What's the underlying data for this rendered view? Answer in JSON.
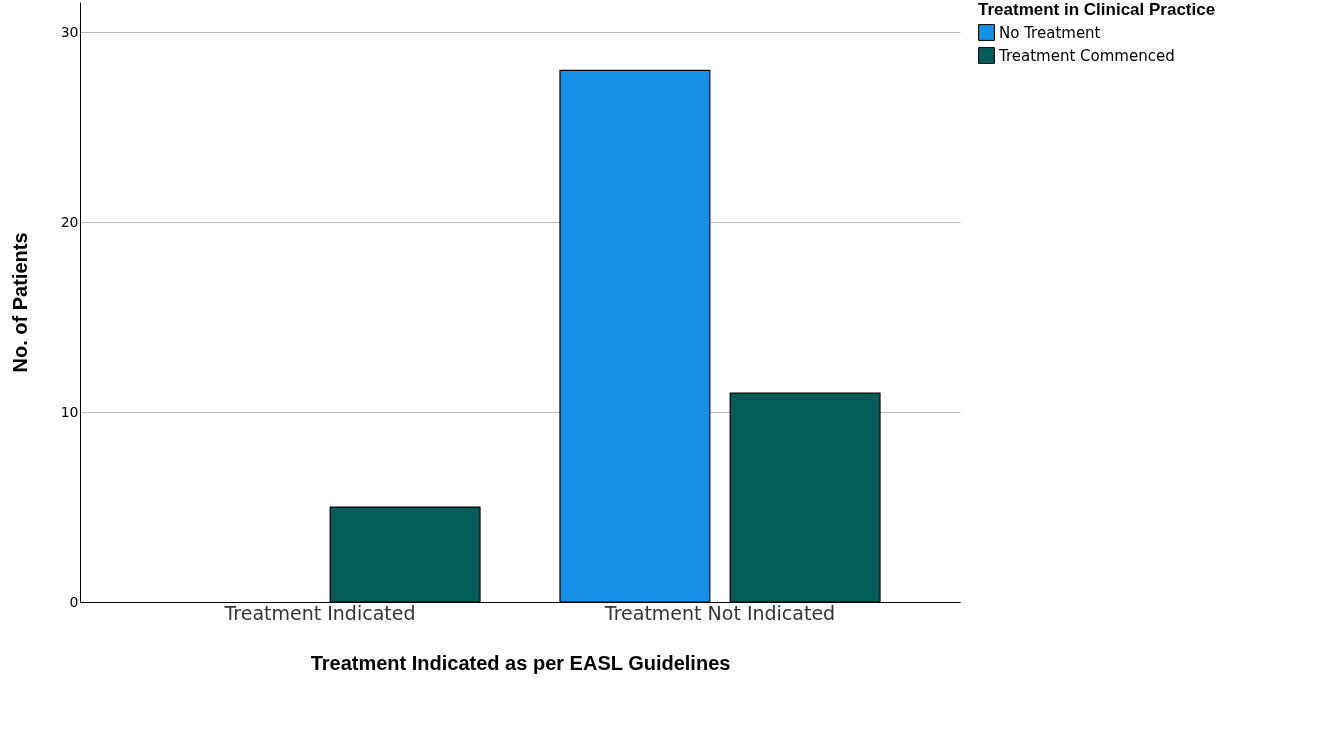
{
  "chart_data": {
    "type": "bar",
    "xlabel": "Treatment Indicated as per EASL Guidelines",
    "ylabel": "No. of Patients",
    "legend_title": "Treatment in Clinical Practice",
    "categories": [
      "Treatment Indicated",
      "Treatment Not Indicated"
    ],
    "series": [
      {
        "name": "No Treatment",
        "color": "#1490e6",
        "values": [
          null,
          28
        ]
      },
      {
        "name": "Treatment Commenced",
        "color": "#045c5a",
        "values": [
          5,
          11
        ]
      }
    ],
    "ylim": [
      0,
      31.6
    ],
    "yticks": [
      0,
      10,
      20,
      30
    ],
    "grid": "y",
    "legend": "top right"
  }
}
